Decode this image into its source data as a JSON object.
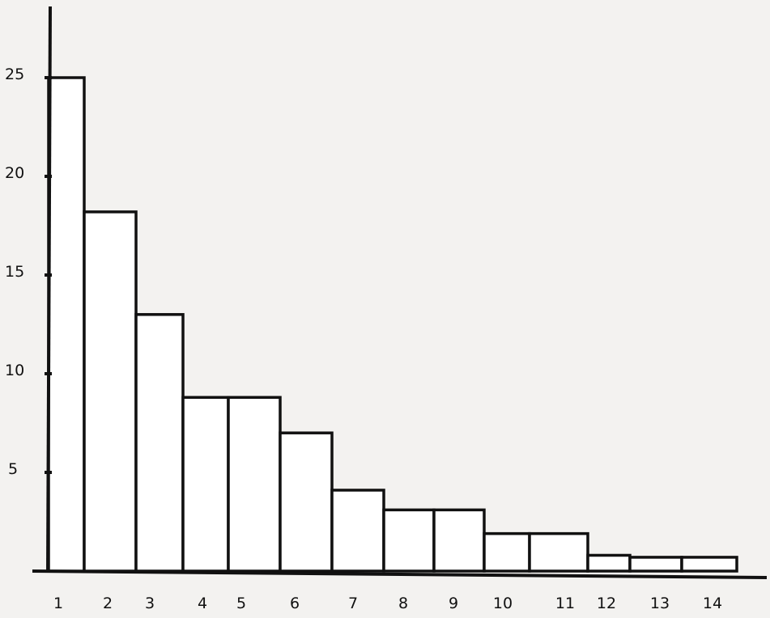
{
  "chart_data": {
    "type": "bar",
    "title": "",
    "xlabel": "",
    "ylabel": "",
    "categories": [
      "1",
      "2",
      "3",
      "4",
      "5",
      "6",
      "7",
      "8",
      "9",
      "10",
      "11",
      "12",
      "13",
      "14"
    ],
    "values": [
      25,
      18.2,
      13,
      8.8,
      8.8,
      7,
      4.1,
      3.1,
      3.1,
      1.9,
      1.9,
      0.8,
      0.7,
      0.7
    ],
    "ylim": [
      0,
      28
    ],
    "yticks": [
      5,
      10,
      15,
      20,
      25
    ],
    "grid": false,
    "colors": {
      "background": "#f3f2f0",
      "stroke": "#111111",
      "fill": "#ffffff"
    }
  }
}
